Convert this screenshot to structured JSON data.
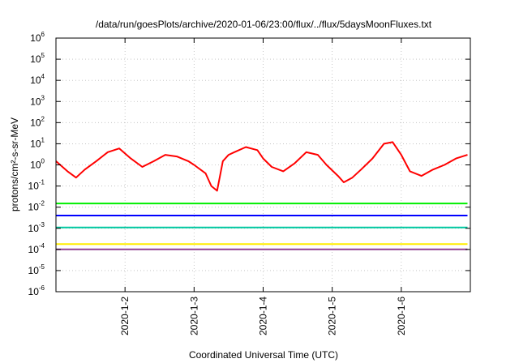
{
  "chart_data": {
    "type": "line",
    "title": "/data/run/goesPlots/archive/2020-01-06/23:00/flux/../flux/5daysMoonFluxes.txt",
    "xlabel": "Coordinated Universal Time (UTC)",
    "ylabel": "protons/cm²-s-sr-MeV",
    "y_scale": "log",
    "ylim": [
      1e-06,
      1000000.0
    ],
    "x_range": [
      "2020-01-01T00:00",
      "2020-01-07T00:00"
    ],
    "y_ticks": [
      {
        "base": "10",
        "exp": "-6",
        "value": 1e-06
      },
      {
        "base": "10",
        "exp": "-5",
        "value": 1e-05
      },
      {
        "base": "10",
        "exp": "-4",
        "value": 0.0001
      },
      {
        "base": "10",
        "exp": "-3",
        "value": 0.001
      },
      {
        "base": "10",
        "exp": "-2",
        "value": 0.01
      },
      {
        "base": "10",
        "exp": "-1",
        "value": 0.1
      },
      {
        "base": "10",
        "exp": "0",
        "value": 1
      },
      {
        "base": "10",
        "exp": "1",
        "value": 10
      },
      {
        "base": "10",
        "exp": "2",
        "value": 100
      },
      {
        "base": "10",
        "exp": "3",
        "value": 1000
      },
      {
        "base": "10",
        "exp": "4",
        "value": 10000
      },
      {
        "base": "10",
        "exp": "5",
        "value": 100000
      },
      {
        "base": "10",
        "exp": "6",
        "value": 1000000
      }
    ],
    "x_ticks": [
      {
        "label": "2020-1-2",
        "date": "2020-01-02T00:00"
      },
      {
        "label": "2020-1-3",
        "date": "2020-01-03T00:00"
      },
      {
        "label": "2020-1-4",
        "date": "2020-01-04T00:00"
      },
      {
        "label": "2020-1-5",
        "date": "2020-01-05T00:00"
      },
      {
        "label": "2020-1-6",
        "date": "2020-01-06T00:00"
      }
    ],
    "grid": true,
    "series": [
      {
        "color": "#ff0000",
        "x": [
          "2020-01-01T00:00",
          "2020-01-01T04:00",
          "2020-01-01T07:00",
          "2020-01-01T10:00",
          "2020-01-01T14:00",
          "2020-01-01T18:00",
          "2020-01-01T22:00",
          "2020-01-02T02:00",
          "2020-01-02T06:00",
          "2020-01-02T10:00",
          "2020-01-02T14:00",
          "2020-01-02T18:00",
          "2020-01-02T22:00",
          "2020-01-03T00:00",
          "2020-01-03T04:00",
          "2020-01-03T06:00",
          "2020-01-03T08:00",
          "2020-01-03T09:00",
          "2020-01-03T10:00",
          "2020-01-03T12:00",
          "2020-01-03T14:00",
          "2020-01-03T18:00",
          "2020-01-03T22:00",
          "2020-01-04T00:00",
          "2020-01-04T03:00",
          "2020-01-04T07:00",
          "2020-01-04T11:00",
          "2020-01-04T15:00",
          "2020-01-04T19:00",
          "2020-01-04T22:00",
          "2020-01-05T02:00",
          "2020-01-05T04:00",
          "2020-01-05T07:00",
          "2020-01-05T10:00",
          "2020-01-05T14:00",
          "2020-01-05T18:00",
          "2020-01-05T21:00",
          "2020-01-06T00:00",
          "2020-01-06T03:00",
          "2020-01-06T07:00",
          "2020-01-06T11:00",
          "2020-01-06T15:00",
          "2020-01-06T19:00",
          "2020-01-06T23:00"
        ],
        "y": [
          1.5,
          0.5,
          0.25,
          0.6,
          1.5,
          4,
          6,
          2,
          0.8,
          1.5,
          3,
          2.5,
          1.5,
          1,
          0.4,
          0.1,
          0.06,
          0.3,
          1.5,
          3,
          4,
          7,
          5,
          2,
          0.8,
          0.5,
          1.2,
          4,
          3,
          1,
          0.3,
          0.15,
          0.25,
          0.6,
          2,
          10,
          12,
          3,
          0.5,
          0.3,
          0.6,
          1,
          2,
          3
        ]
      },
      {
        "color": "#00ee00",
        "x": [
          "2020-01-01T00:00",
          "2020-01-02T00:00",
          "2020-01-03T00:00",
          "2020-01-04T00:00",
          "2020-01-05T00:00",
          "2020-01-06T00:00",
          "2020-01-06T23:00"
        ],
        "y": [
          0.015,
          0.015,
          0.015,
          0.015,
          0.015,
          0.015,
          0.015
        ]
      },
      {
        "color": "#0000ff",
        "x": [
          "2020-01-01T00:00",
          "2020-01-02T00:00",
          "2020-01-03T00:00",
          "2020-01-04T00:00",
          "2020-01-05T00:00",
          "2020-01-06T00:00",
          "2020-01-06T23:00"
        ],
        "y": [
          0.004,
          0.004,
          0.004,
          0.004,
          0.004,
          0.004,
          0.004
        ]
      },
      {
        "color": "#00c8a0",
        "x": [
          "2020-01-01T00:00",
          "2020-01-02T00:00",
          "2020-01-03T00:00",
          "2020-01-04T00:00",
          "2020-01-05T00:00",
          "2020-01-06T00:00",
          "2020-01-06T23:00"
        ],
        "y": [
          0.0011,
          0.0011,
          0.0011,
          0.0011,
          0.0011,
          0.0011,
          0.0011
        ]
      },
      {
        "color": "#ffee00",
        "x": [
          "2020-01-01T00:00",
          "2020-01-02T00:00",
          "2020-01-03T00:00",
          "2020-01-04T00:00",
          "2020-01-05T00:00",
          "2020-01-06T00:00",
          "2020-01-06T23:00"
        ],
        "y": [
          0.00018,
          0.00018,
          0.00018,
          0.00018,
          0.00018,
          0.00018,
          0.00018
        ]
      },
      {
        "color": "#904090",
        "x": [
          "2020-01-01T00:00",
          "2020-01-02T00:00",
          "2020-01-03T00:00",
          "2020-01-04T00:00",
          "2020-01-05T00:00",
          "2020-01-06T00:00",
          "2020-01-06T23:00"
        ],
        "y": [
          0.0001,
          0.0001,
          0.0001,
          0.0001,
          0.0001,
          0.0001,
          0.0001
        ]
      }
    ]
  }
}
